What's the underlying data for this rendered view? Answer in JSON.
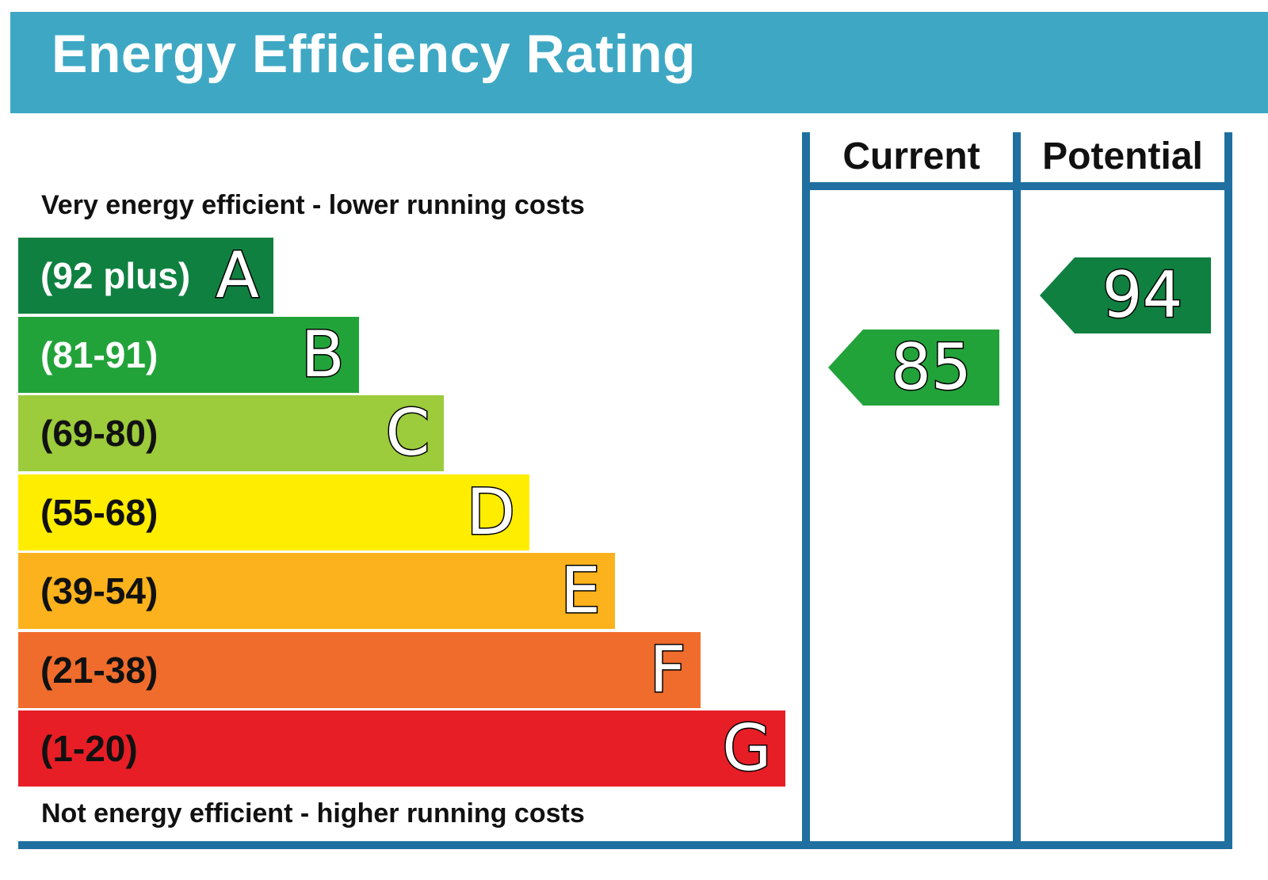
{
  "title": "Energy Efficiency Rating",
  "columns": {
    "current": "Current",
    "potential": "Potential"
  },
  "top_text": "Very energy efficient - lower running costs",
  "bottom_text": "Not energy efficient - higher running costs",
  "colors": {
    "header": "#3ea8c4",
    "frame": "#1f6fa0",
    "A": "#0f8040",
    "B": "#22a33a",
    "C": "#9ccb3c",
    "D": "#ffed00",
    "E": "#fbb21c",
    "F": "#f06c2c",
    "G": "#e71e26"
  },
  "chart_data": {
    "type": "bar",
    "bands": [
      {
        "letter": "A",
        "range": "(92 plus)",
        "min": 92,
        "max": 100
      },
      {
        "letter": "B",
        "range": "(81-91)",
        "min": 81,
        "max": 91
      },
      {
        "letter": "C",
        "range": "(69-80)",
        "min": 69,
        "max": 80
      },
      {
        "letter": "D",
        "range": "(55-68)",
        "min": 55,
        "max": 68
      },
      {
        "letter": "E",
        "range": "(39-54)",
        "min": 39,
        "max": 54
      },
      {
        "letter": "F",
        "range": "(21-38)",
        "min": 21,
        "max": 38
      },
      {
        "letter": "G",
        "range": "(1-20)",
        "min": 1,
        "max": 20
      }
    ],
    "current": {
      "value": 85,
      "band": "B"
    },
    "potential": {
      "value": 94,
      "band": "A"
    }
  }
}
